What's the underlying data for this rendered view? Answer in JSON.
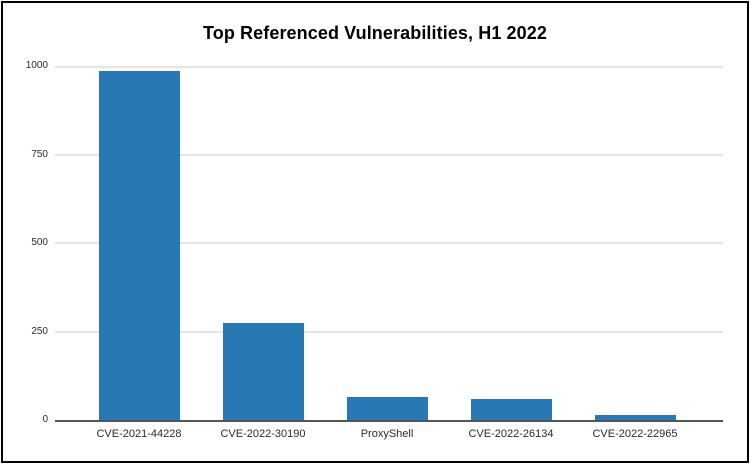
{
  "title": "Top Referenced Vulnerabilities, H1 2022",
  "colors": {
    "bar": "#2878b4",
    "gridline": "#e4e4e4",
    "axis": "#555555",
    "frame": "#000000",
    "tick_text": "#2b2b2b",
    "background": "#ffffff"
  },
  "chart_data": {
    "type": "bar",
    "title": "Top Referenced Vulnerabilities, H1 2022",
    "categories": [
      "CVE-2021-44228",
      "CVE-2022-30190",
      "ProxyShell",
      "CVE-2022-26134",
      "CVE-2022-22965"
    ],
    "values": [
      985,
      275,
      65,
      60,
      15
    ],
    "xlabel": "",
    "ylabel": "",
    "ylim": [
      0,
      1000
    ],
    "yticks": [
      0,
      250,
      500,
      750,
      1000
    ],
    "grid": "horizontal",
    "legend": "none",
    "bar_color": "#2878b4"
  }
}
